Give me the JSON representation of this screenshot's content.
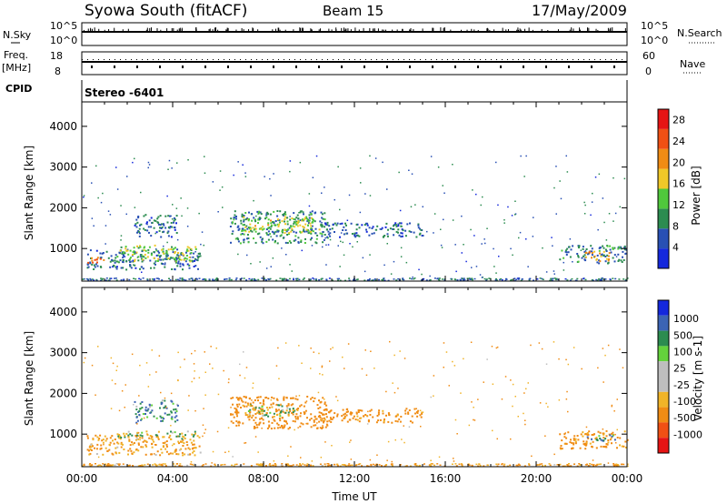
{
  "header": {
    "station": "Syowa South (fitACF)",
    "beam": "Beam 15",
    "date": "17/May/2009"
  },
  "top_panels": {
    "nsky_label": "N.Sky",
    "nsky_ticks": [
      "10^5",
      "10^0"
    ],
    "nsearch_label": "N.Search",
    "nsearch_ticks": [
      "10^5",
      "10^0"
    ],
    "freq_label": "Freq.",
    "freq_unit": "[MHz]",
    "freq_ticks": [
      "18",
      "8"
    ],
    "nave_label": "Nave",
    "nave_ticks": [
      "60",
      "0"
    ],
    "cpid_label": "CPID",
    "cpid_value": "Stereo -6401"
  },
  "colors": {
    "power_scale": [
      "#1428dc",
      "#2850b4",
      "#2c8c50",
      "#50c83c",
      "#f0c828",
      "#f08c14",
      "#f05014",
      "#e61414"
    ],
    "velocity_scale": [
      "#1428dc",
      "#3c64b4",
      "#2c8c50",
      "#64d23c",
      "#bebebe",
      "#bebebe",
      "#f0b428",
      "#f08c14",
      "#f05014",
      "#e61414"
    ]
  },
  "chart_data": [
    {
      "type": "heatmap",
      "name": "power",
      "ylabel": "Slant Range [km]",
      "yticks": [
        "1000",
        "2000",
        "3000",
        "4000"
      ],
      "ylim": [
        200,
        4600
      ],
      "colorbar_label": "Power [dB]",
      "colorbar_ticks": [
        "4",
        "8",
        "12",
        "16",
        "20",
        "24",
        "28"
      ],
      "clim": [
        0,
        30
      ],
      "regions": [
        {
          "t": [
            0.2,
            5.2
          ],
          "r": [
            500,
            1000
          ],
          "v": 7
        },
        {
          "t": [
            1.5,
            5.0
          ],
          "r": [
            700,
            1100
          ],
          "v": 14
        },
        {
          "t": [
            2.3,
            4.2
          ],
          "r": [
            1300,
            1850
          ],
          "v": 7
        },
        {
          "t": [
            6.5,
            10.8
          ],
          "r": [
            1150,
            1950
          ],
          "v": 9
        },
        {
          "t": [
            7.0,
            10.5
          ],
          "r": [
            1400,
            1800
          ],
          "v": 15
        },
        {
          "t": [
            10.5,
            15.0
          ],
          "r": [
            1300,
            1650
          ],
          "v": 6
        },
        {
          "t": [
            21.0,
            24.0
          ],
          "r": [
            650,
            1100
          ],
          "v": 8
        },
        {
          "t": [
            22.0,
            23.2
          ],
          "r": [
            700,
            950
          ],
          "v": 19
        },
        {
          "t": [
            0.0,
            1.0
          ],
          "r": [
            650,
            800
          ],
          "v": 22
        }
      ]
    },
    {
      "type": "heatmap",
      "name": "velocity",
      "ylabel": "Slant Range [km]",
      "yticks": [
        "1000",
        "2000",
        "3000",
        "4000"
      ],
      "ylim": [
        200,
        4600
      ],
      "colorbar_label": "Velocity [m s-1]",
      "colorbar_ticks": [
        "1000",
        "500",
        "100",
        "25",
        "-25",
        "-100",
        "-500",
        "-1000"
      ],
      "regions": [
        {
          "t": [
            0.2,
            5.2
          ],
          "r": [
            500,
            1000
          ],
          "v": -120
        },
        {
          "t": [
            1.5,
            5.0
          ],
          "r": [
            900,
            1100
          ],
          "v": 0
        },
        {
          "t": [
            2.3,
            4.2
          ],
          "r": [
            1300,
            1850
          ],
          "v": 80
        },
        {
          "t": [
            6.5,
            10.8
          ],
          "r": [
            1150,
            1950
          ],
          "v": -200
        },
        {
          "t": [
            7.0,
            9.5
          ],
          "r": [
            1450,
            1750
          ],
          "v": 0
        },
        {
          "t": [
            10.5,
            15.0
          ],
          "r": [
            1300,
            1650
          ],
          "v": -180
        },
        {
          "t": [
            21.0,
            24.0
          ],
          "r": [
            650,
            1100
          ],
          "v": -150
        },
        {
          "t": [
            22.0,
            23.5
          ],
          "r": [
            850,
            1000
          ],
          "v": 80
        }
      ],
      "xlabel": "Time UT",
      "xticks": [
        "00:00",
        "04:00",
        "08:00",
        "12:00",
        "16:00",
        "20:00",
        "00:00"
      ],
      "xlim": [
        0,
        24
      ]
    }
  ]
}
